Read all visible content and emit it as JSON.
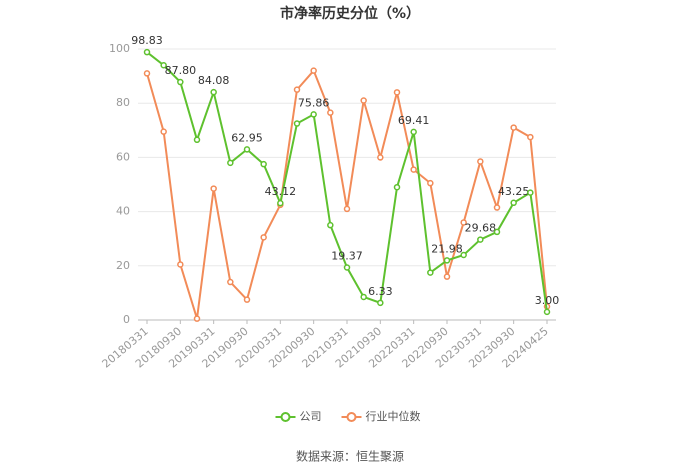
{
  "chart_data": {
    "type": "line",
    "title": "市净率历史分位（%）",
    "categories": [
      "20180331",
      null,
      "20180930",
      null,
      "20190331",
      null,
      "20190930",
      null,
      "20200331",
      null,
      "20200930",
      null,
      "20210331",
      null,
      "20210930",
      null,
      "20220331",
      null,
      "20220930",
      null,
      "20230331",
      null,
      "20230930",
      null,
      "20240425"
    ],
    "series": [
      {
        "name": "公司",
        "color": "#5ec12e",
        "values": [
          98.83,
          94,
          87.8,
          66.5,
          84.08,
          58,
          62.95,
          57.5,
          43.12,
          72.5,
          75.86,
          35,
          19.37,
          8.5,
          6.33,
          49,
          69.41,
          17.5,
          21.98,
          24,
          29.68,
          32.5,
          43.25,
          47,
          3.0
        ],
        "value_labels": [
          "98.83",
          null,
          "87.80",
          null,
          "84.08",
          null,
          "62.95",
          null,
          "43.12",
          null,
          "75.86",
          null,
          "19.37",
          null,
          "6.33",
          null,
          "69.41",
          null,
          "21.98",
          null,
          "29.68",
          null,
          "43.25",
          null,
          "3.00"
        ]
      },
      {
        "name": "行业中位数",
        "color": "#f28b58",
        "values": [
          91,
          69.5,
          20.5,
          0.5,
          48.5,
          14,
          7.5,
          30.5,
          42.5,
          85,
          92,
          76.5,
          41,
          81,
          60,
          84,
          55.5,
          50.5,
          16,
          36,
          58.5,
          41.5,
          71,
          67.5,
          5
        ]
      }
    ],
    "ylim": [
      0,
      100
    ],
    "yticks": [
      0,
      20,
      40,
      60,
      80,
      100
    ],
    "grid": true,
    "legend": "bottom",
    "source": "数据来源：恒生聚源"
  }
}
